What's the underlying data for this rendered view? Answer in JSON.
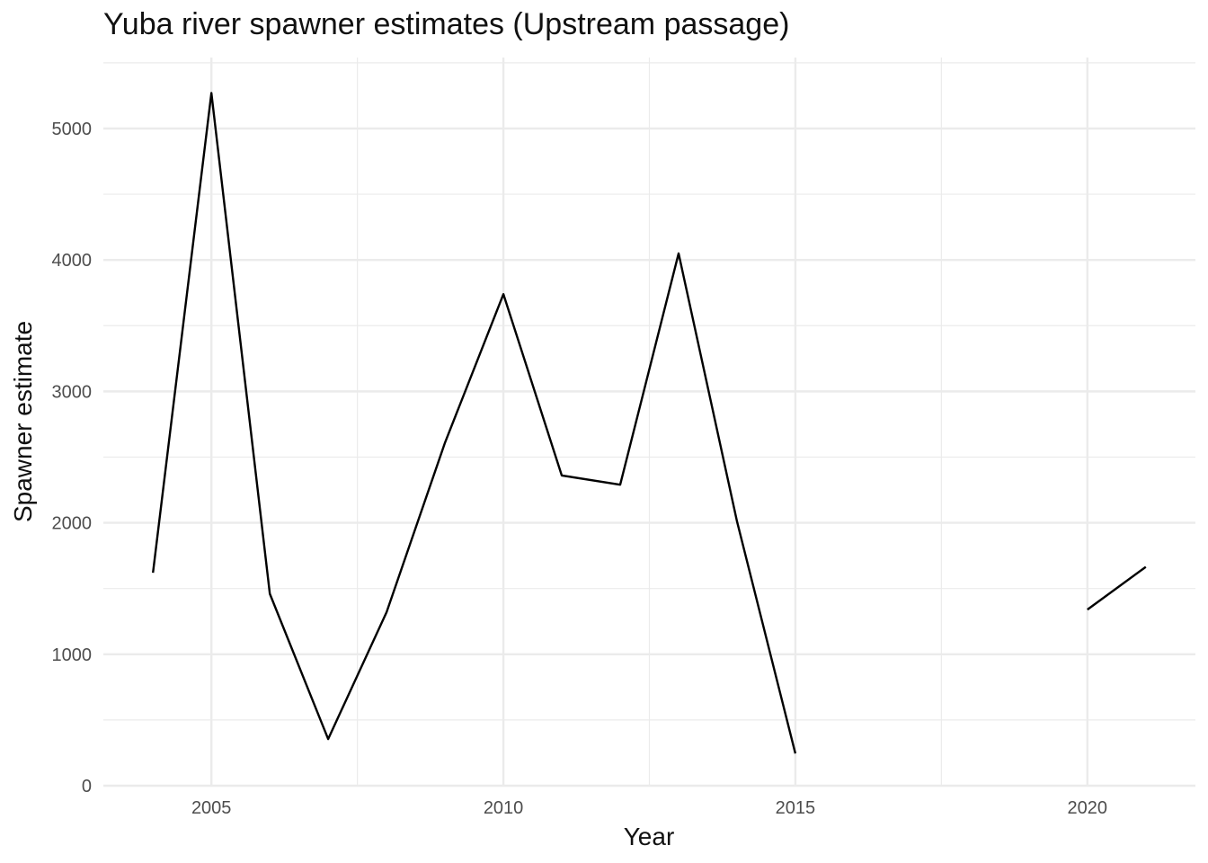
{
  "chart_data": {
    "type": "line",
    "title": "Yuba river spawner estimates (Upstream passage)",
    "xlabel": "Year",
    "ylabel": "Spawner estimate",
    "xlim": [
      2003.15,
      2021.85
    ],
    "ylim": [
      0,
      5540
    ],
    "x_ticks": [
      2005,
      2010,
      2015,
      2020
    ],
    "y_ticks": [
      0,
      1000,
      2000,
      3000,
      4000,
      5000
    ],
    "x_tick_labels": [
      "2005",
      "2010",
      "2015",
      "2020"
    ],
    "y_tick_labels": [
      "0",
      "1000",
      "2000",
      "3000",
      "4000",
      "5000"
    ],
    "grid": true,
    "legend": "none",
    "line_color": "#000000",
    "gridline_color": "#ebebeb",
    "series": [
      {
        "segments": [
          {
            "x": [
              2004,
              2005,
              2006,
              2007,
              2008,
              2009,
              2010,
              2011,
              2012,
              2013,
              2014,
              2015
            ],
            "y": [
              1620,
              5270,
              1460,
              355,
              1320,
              2610,
              3740,
              2360,
              2290,
              4050,
              2010,
              245
            ]
          },
          {
            "x": [
              2020,
              2021
            ],
            "y": [
              1340,
              1665
            ]
          }
        ]
      }
    ]
  }
}
